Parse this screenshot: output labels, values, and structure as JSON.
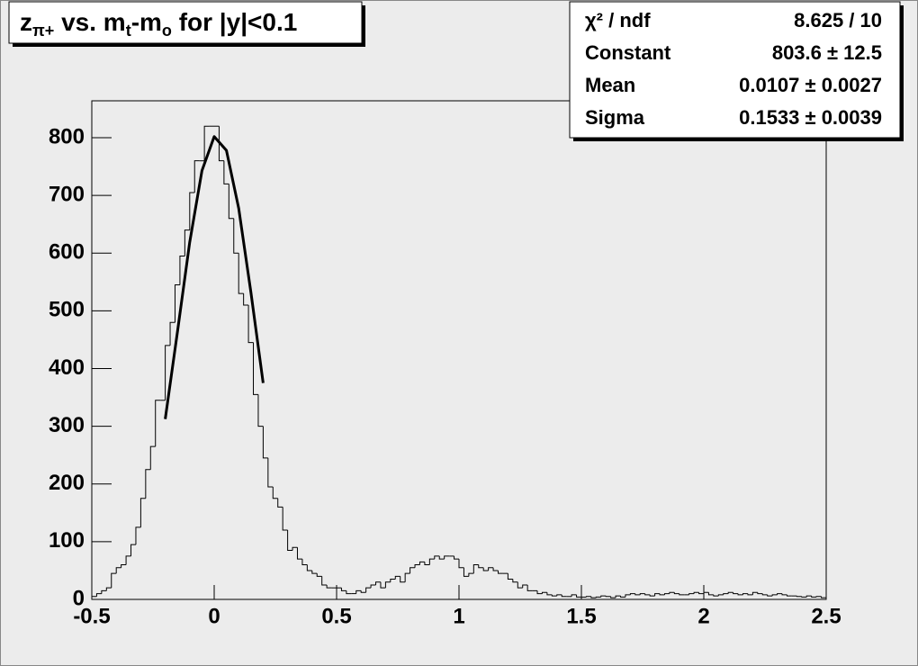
{
  "chart_data": {
    "type": "histogram",
    "title_parts": [
      {
        "text": "z"
      },
      {
        "text": "π+",
        "sub": true
      },
      {
        "text": " vs. m"
      },
      {
        "text": "t",
        "sub": true
      },
      {
        "text": "-m"
      },
      {
        "text": "o",
        "sub": true
      },
      {
        "text": " for |y|<0.1"
      }
    ],
    "stats": [
      {
        "label": "χ² / ndf",
        "value": "8.625 / 10"
      },
      {
        "label": "Constant",
        "value": "803.6 ± 12.5"
      },
      {
        "label": "Mean",
        "value": "0.0107 ± 0.0027"
      },
      {
        "label": "Sigma",
        "value": "0.1533 ± 0.0039"
      }
    ],
    "bins": [
      -0.5,
      -0.48,
      -0.46,
      -0.44,
      -0.42,
      -0.4,
      -0.38,
      -0.36,
      -0.34,
      -0.32,
      -0.3,
      -0.28,
      -0.26,
      -0.24,
      -0.22,
      -0.2,
      -0.18,
      -0.16,
      -0.14,
      -0.12,
      -0.1,
      -0.08,
      -0.06,
      -0.04,
      -0.02,
      0,
      0.02,
      0.04,
      0.06,
      0.08,
      0.1,
      0.12,
      0.14,
      0.16,
      0.18,
      0.2,
      0.22,
      0.24,
      0.26,
      0.28,
      0.3,
      0.32,
      0.34,
      0.36,
      0.38,
      0.4,
      0.42,
      0.44,
      0.46,
      0.48,
      0.5,
      0.52,
      0.54,
      0.56,
      0.58,
      0.6,
      0.62,
      0.64,
      0.66,
      0.68,
      0.7,
      0.72,
      0.74,
      0.76,
      0.78,
      0.8,
      0.82,
      0.84,
      0.86,
      0.88,
      0.9,
      0.92,
      0.94,
      0.96,
      0.98,
      1,
      1.02,
      1.04,
      1.06,
      1.08,
      1.1,
      1.12,
      1.14,
      1.16,
      1.18,
      1.2,
      1.22,
      1.24,
      1.26,
      1.28,
      1.3,
      1.32,
      1.34,
      1.36,
      1.38,
      1.4,
      1.42,
      1.44,
      1.46,
      1.48,
      1.5,
      1.52,
      1.54,
      1.56,
      1.58,
      1.6,
      1.62,
      1.64,
      1.66,
      1.68,
      1.7,
      1.72,
      1.74,
      1.76,
      1.78,
      1.8,
      1.82,
      1.84,
      1.86,
      1.88,
      1.9,
      1.92,
      1.94,
      1.96,
      1.98,
      2,
      2.02,
      2.04,
      2.06,
      2.08,
      2.1,
      2.12,
      2.14,
      2.16,
      2.18,
      2.2,
      2.22,
      2.24,
      2.26,
      2.28,
      2.3,
      2.32,
      2.34,
      2.36,
      2.38,
      2.4,
      2.42,
      2.44,
      2.46,
      2.48,
      2.5
    ],
    "values": [
      5,
      10,
      15,
      20,
      45,
      55,
      60,
      75,
      95,
      125,
      175,
      225,
      265,
      345,
      345,
      440,
      480,
      545,
      595,
      640,
      705,
      760,
      760,
      820,
      820,
      820,
      760,
      720,
      660,
      600,
      530,
      510,
      445,
      355,
      300,
      245,
      195,
      175,
      160,
      120,
      85,
      90,
      70,
      60,
      50,
      45,
      40,
      25,
      20,
      20,
      20,
      15,
      10,
      10,
      15,
      12,
      20,
      25,
      30,
      20,
      30,
      35,
      40,
      30,
      45,
      55,
      60,
      65,
      60,
      70,
      75,
      70,
      75,
      75,
      70,
      55,
      40,
      45,
      60,
      55,
      50,
      55,
      50,
      45,
      45,
      35,
      30,
      20,
      25,
      15,
      15,
      10,
      12,
      8,
      6,
      8,
      5,
      5,
      8,
      4,
      4,
      5,
      3,
      4,
      6,
      5,
      3,
      6,
      4,
      8,
      10,
      8,
      10,
      8,
      6,
      10,
      8,
      10,
      12,
      10,
      8,
      8,
      10,
      12,
      10,
      12,
      8,
      6,
      8,
      10,
      12,
      10,
      8,
      10,
      8,
      12,
      10,
      8,
      6,
      8,
      10,
      8,
      6,
      6,
      5,
      4,
      6,
      4,
      5,
      3
    ],
    "color": "#000000",
    "fit": {
      "x": [
        -0.2,
        -0.15,
        -0.1,
        -0.05,
        0,
        0.05,
        0.1,
        0.15,
        0.2
      ],
      "y": [
        312.5,
        464,
        619,
        743,
        802,
        778,
        678,
        532,
        375
      ],
      "color": "#000000"
    },
    "xlim": [
      -0.5,
      2.5
    ],
    "ylim": [
      0,
      864
    ],
    "xticks": [
      -0.5,
      0,
      0.5,
      1,
      1.5,
      2,
      2.5
    ],
    "yticks": [
      0,
      100,
      200,
      300,
      400,
      500,
      600,
      700,
      800
    ]
  }
}
